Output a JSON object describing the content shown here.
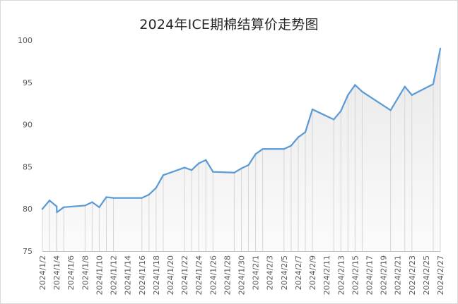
{
  "chart_data": {
    "type": "area",
    "title": "2024年ICE期棉结算价走势图",
    "xlabel": "",
    "ylabel": "",
    "ylim": [
      75,
      100
    ],
    "yticks": [
      75,
      80,
      85,
      90,
      95,
      100
    ],
    "grid": false,
    "legend": "none",
    "colors": {
      "line": "#5b9bd5",
      "area_top": "#e9e9e9",
      "area_bottom": "#fbfbfb",
      "drop": "#d6d6d6",
      "axis": "#bfbfbf",
      "text": "#595959"
    },
    "x_labels": [
      "2024/1/2",
      "2024/1/4",
      "2024/1/6",
      "2024/1/8",
      "2024/1/10",
      "2024/1/12",
      "2024/1/14",
      "2024/1/16",
      "2024/1/18",
      "2024/1/20",
      "2024/1/22",
      "2024/1/24",
      "2024/1/26",
      "2024/1/28",
      "2024/1/30",
      "2024/2/1",
      "2024/2/3",
      "2024/2/5",
      "2024/2/7",
      "2024/2/9",
      "2024/2/11",
      "2024/2/13",
      "2024/2/15",
      "2024/2/17",
      "2024/2/19",
      "2024/2/21",
      "2024/2/23",
      "2024/2/25",
      "2024/2/27"
    ],
    "points": [
      {
        "x": "2024/1/2",
        "y": 80.0
      },
      {
        "x": "2024/1/3",
        "y": 81.0
      },
      {
        "x": "2024/1/4",
        "y": 80.3
      },
      {
        "x": "2024/1/4",
        "y": 79.6
      },
      {
        "x": "2024/1/5",
        "y": 80.2
      },
      {
        "x": "2024/1/8",
        "y": 80.4
      },
      {
        "x": "2024/1/9",
        "y": 80.8
      },
      {
        "x": "2024/1/10",
        "y": 80.2
      },
      {
        "x": "2024/1/11",
        "y": 81.4
      },
      {
        "x": "2024/1/12",
        "y": 81.3
      },
      {
        "x": "2024/1/16",
        "y": 81.3
      },
      {
        "x": "2024/1/17",
        "y": 81.7
      },
      {
        "x": "2024/1/18",
        "y": 82.5
      },
      {
        "x": "2024/1/19",
        "y": 84.0
      },
      {
        "x": "2024/1/22",
        "y": 84.9
      },
      {
        "x": "2024/1/23",
        "y": 84.6
      },
      {
        "x": "2024/1/24",
        "y": 85.4
      },
      {
        "x": "2024/1/25",
        "y": 85.8
      },
      {
        "x": "2024/1/26",
        "y": 84.4
      },
      {
        "x": "2024/1/29",
        "y": 84.3
      },
      {
        "x": "2024/1/30",
        "y": 84.8
      },
      {
        "x": "2024/1/31",
        "y": 85.2
      },
      {
        "x": "2024/2/1",
        "y": 86.5
      },
      {
        "x": "2024/2/2",
        "y": 87.1
      },
      {
        "x": "2024/2/5",
        "y": 87.1
      },
      {
        "x": "2024/2/6",
        "y": 87.5
      },
      {
        "x": "2024/2/7",
        "y": 88.5
      },
      {
        "x": "2024/2/8",
        "y": 89.1
      },
      {
        "x": "2024/2/9",
        "y": 91.8
      },
      {
        "x": "2024/2/12",
        "y": 90.6
      },
      {
        "x": "2024/2/13",
        "y": 91.6
      },
      {
        "x": "2024/2/14",
        "y": 93.5
      },
      {
        "x": "2024/2/15",
        "y": 94.7
      },
      {
        "x": "2024/2/16",
        "y": 93.9
      },
      {
        "x": "2024/2/20",
        "y": 91.7
      },
      {
        "x": "2024/2/22",
        "y": 94.5
      },
      {
        "x": "2024/2/23",
        "y": 93.5
      },
      {
        "x": "2024/2/26",
        "y": 94.8
      },
      {
        "x": "2024/2/27",
        "y": 99.0
      }
    ]
  }
}
